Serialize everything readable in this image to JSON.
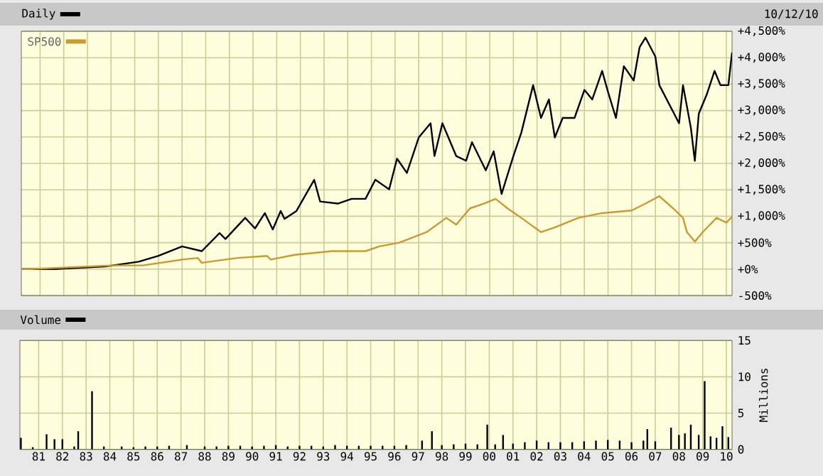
{
  "chart_data": [
    {
      "type": "line",
      "legend": "top left",
      "grid": true,
      "tick_labels": "y",
      "annotations": [
        "10/12/10"
      ],
      "xlim": [
        "1980-10-01",
        "2010-10-12"
      ],
      "xticks": [
        {
          "value": "1981-07",
          "label": null
        },
        {
          "value": "1982-07",
          "label": null
        },
        {
          "value": "1983-07",
          "label": null
        },
        {
          "value": "1984-07",
          "label": null
        },
        {
          "value": "1985-07",
          "label": null
        },
        {
          "value": "1986-07",
          "label": null
        },
        {
          "value": "1987-07",
          "label": null
        },
        {
          "value": "1988-07",
          "label": null
        },
        {
          "value": "1989-07",
          "label": null
        },
        {
          "value": "1990-07",
          "label": null
        },
        {
          "value": "1991-07",
          "label": null
        },
        {
          "value": "1992-07",
          "label": null
        },
        {
          "value": "1993-07",
          "label": null
        },
        {
          "value": "1994-07",
          "label": null
        },
        {
          "value": "1995-07",
          "label": null
        },
        {
          "value": "1996-07",
          "label": null
        },
        {
          "value": "1997-07",
          "label": null
        },
        {
          "value": "1998-07",
          "label": null
        },
        {
          "value": "1999-07",
          "label": null
        },
        {
          "value": "2000-07",
          "label": null
        },
        {
          "value": "2001-07",
          "label": null
        },
        {
          "value": "2002-07",
          "label": null
        },
        {
          "value": "2003-07",
          "label": null
        },
        {
          "value": "2004-07",
          "label": null
        },
        {
          "value": "2005-07",
          "label": null
        },
        {
          "value": "2006-07",
          "label": null
        },
        {
          "value": "2007-07",
          "label": null
        },
        {
          "value": "2008-07",
          "label": null
        },
        {
          "value": "2009-07",
          "label": null
        },
        {
          "value": "2010-07",
          "label": null
        }
      ],
      "ylim": [
        -500,
        4500
      ],
      "yticks": [
        {
          "value": 4500,
          "label": "+4,500%"
        },
        {
          "value": 4000,
          "label": "+4,000%"
        },
        {
          "value": 3500,
          "label": "+3,500%"
        },
        {
          "value": 3000,
          "label": "+3,000%"
        },
        {
          "value": 2500,
          "label": "+2,500%"
        },
        {
          "value": 2000,
          "label": "+2,000%"
        },
        {
          "value": 1500,
          "label": "+1,500%"
        },
        {
          "value": 1000,
          "label": "+1,000%"
        },
        {
          "value": 500,
          "label": "+500%"
        },
        {
          "value": 0,
          "label": "+0%"
        },
        {
          "value": -500,
          "label": "-500%"
        }
      ],
      "series": [
        {
          "name": "Daily",
          "color": "#000000",
          "x": [
            "1980-10",
            "1982-02",
            "1984-04",
            "1985-09",
            "1986-07",
            "1987-07",
            "1988-05",
            "1989-02",
            "1989-05",
            "1990-03",
            "1990-08",
            "1991-01",
            "1991-05",
            "1991-09",
            "1991-11",
            "1992-05",
            "1993-02",
            "1993-05",
            "1994-02",
            "1994-09",
            "1995-04",
            "1995-09",
            "1996-04",
            "1996-08",
            "1997-01",
            "1997-07",
            "1998-01",
            "1998-03",
            "1998-07",
            "1999-02",
            "1999-07",
            "1999-10",
            "2000-05",
            "2000-09",
            "2001-01",
            "2001-07",
            "2001-11",
            "2002-02",
            "2002-05",
            "2002-09",
            "2003-01",
            "2003-04",
            "2003-08",
            "2004-02",
            "2004-07",
            "2004-11",
            "2005-04",
            "2005-07",
            "2005-11",
            "2006-03",
            "2006-08",
            "2006-11",
            "2007-02",
            "2007-07",
            "2007-09",
            "2008-02",
            "2008-07",
            "2008-09",
            "2009-01",
            "2009-03",
            "2009-05",
            "2009-09",
            "2010-01",
            "2010-04",
            "2010-08",
            "2010-10-12"
          ],
          "values": [
            0,
            0,
            50,
            140,
            250,
            430,
            340,
            680,
            570,
            970,
            770,
            1060,
            750,
            1100,
            950,
            1100,
            1690,
            1280,
            1240,
            1330,
            1330,
            1690,
            1510,
            2090,
            1820,
            2490,
            2760,
            2140,
            2760,
            2140,
            2050,
            2400,
            1870,
            2230,
            1420,
            2140,
            2580,
            3030,
            3480,
            2860,
            3210,
            2490,
            2860,
            2860,
            3390,
            3210,
            3750,
            3350,
            2860,
            3840,
            3570,
            4200,
            4380,
            4020,
            3480,
            3120,
            2760,
            3480,
            2670,
            2050,
            2940,
            3300,
            3750,
            3480,
            3480,
            4100
          ]
        },
        {
          "name": "SP500",
          "color": "#cc9933",
          "x": [
            "1980-10",
            "1981-02",
            "1984-07",
            "1985-11",
            "1987-07",
            "1988-03",
            "1988-05",
            "1989-11",
            "1991-02",
            "1991-04",
            "1992-04",
            "1993-11",
            "1995-04",
            "1995-11",
            "1996-09",
            "1997-02",
            "1997-11",
            "1998-09",
            "1999-02",
            "1999-09",
            "2000-04",
            "2000-10",
            "2001-04",
            "2001-11",
            "2002-09",
            "2003-04",
            "2004-04",
            "2005-04",
            "2006-07",
            "2007-02",
            "2007-09",
            "2008-04",
            "2008-09",
            "2008-11",
            "2009-03",
            "2009-07",
            "2010-02",
            "2010-07",
            "2010-10-12"
          ],
          "values": [
            0,
            0,
            70,
            70,
            180,
            210,
            120,
            210,
            250,
            180,
            270,
            340,
            340,
            430,
            500,
            570,
            700,
            970,
            840,
            1150,
            1240,
            1330,
            1150,
            970,
            700,
            790,
            970,
            1060,
            1110,
            1240,
            1380,
            1150,
            970,
            700,
            520,
            700,
            970,
            880,
            990
          ]
        }
      ]
    },
    {
      "type": "bar",
      "legend": "top left",
      "grid": true,
      "ylabel": "Millions",
      "xlim": [
        "1980-10-01",
        "2010-10-12"
      ],
      "xticks": [
        {
          "value": "1981-07",
          "label": "81"
        },
        {
          "value": "1982-07",
          "label": "82"
        },
        {
          "value": "1983-07",
          "label": "83"
        },
        {
          "value": "1984-07",
          "label": "84"
        },
        {
          "value": "1985-07",
          "label": "85"
        },
        {
          "value": "1986-07",
          "label": "86"
        },
        {
          "value": "1987-07",
          "label": "87"
        },
        {
          "value": "1988-07",
          "label": "88"
        },
        {
          "value": "1989-07",
          "label": "89"
        },
        {
          "value": "1990-07",
          "label": "90"
        },
        {
          "value": "1991-07",
          "label": "91"
        },
        {
          "value": "1992-07",
          "label": "92"
        },
        {
          "value": "1993-07",
          "label": "93"
        },
        {
          "value": "1994-07",
          "label": "94"
        },
        {
          "value": "1995-07",
          "label": "95"
        },
        {
          "value": "1996-07",
          "label": "96"
        },
        {
          "value": "1997-07",
          "label": "97"
        },
        {
          "value": "1998-07",
          "label": "98"
        },
        {
          "value": "1999-07",
          "label": "99"
        },
        {
          "value": "2000-07",
          "label": "00"
        },
        {
          "value": "2001-07",
          "label": "01"
        },
        {
          "value": "2002-07",
          "label": "02"
        },
        {
          "value": "2003-07",
          "label": "03"
        },
        {
          "value": "2004-07",
          "label": "04"
        },
        {
          "value": "2005-07",
          "label": "05"
        },
        {
          "value": "2006-07",
          "label": "06"
        },
        {
          "value": "2007-07",
          "label": "07"
        },
        {
          "value": "2008-07",
          "label": "08"
        },
        {
          "value": "2009-07",
          "label": "09"
        },
        {
          "value": "2010-07",
          "label": "10"
        }
      ],
      "ylim": [
        0,
        15
      ],
      "yticks": [
        0,
        5,
        10,
        15
      ],
      "series": [
        {
          "name": "Volume",
          "color": "#000000",
          "x": [
            "1980-10",
            "1981-04",
            "1981-11",
            "1982-03",
            "1982-07",
            "1983-01",
            "1983-03",
            "1983-10",
            "1984-04",
            "1985-01",
            "1985-07",
            "1986-01",
            "1986-07",
            "1987-01",
            "1987-10",
            "1988-07",
            "1989-01",
            "1989-07",
            "1990-01",
            "1990-07",
            "1991-01",
            "1991-07",
            "1992-01",
            "1992-07",
            "1993-01",
            "1993-07",
            "1994-01",
            "1994-07",
            "1995-01",
            "1995-07",
            "1996-01",
            "1996-07",
            "1997-01",
            "1997-09",
            "1998-02",
            "1998-07",
            "1999-01",
            "1999-07",
            "2000-01",
            "2000-06",
            "2000-10",
            "2001-02",
            "2001-07",
            "2002-01",
            "2002-07",
            "2003-01",
            "2003-07",
            "2004-01",
            "2004-07",
            "2005-01",
            "2005-07",
            "2006-01",
            "2006-07",
            "2007-01",
            "2007-03",
            "2007-07",
            "2008-03",
            "2008-07",
            "2008-10",
            "2009-01",
            "2009-05",
            "2009-08",
            "2009-11",
            "2010-02",
            "2010-05",
            "2010-08"
          ],
          "values": [
            1.6,
            0.3,
            2.1,
            1.4,
            1.4,
            0.4,
            2.5,
            8.0,
            0.4,
            0.4,
            0.3,
            0.4,
            0.4,
            0.5,
            0.6,
            0.4,
            0.4,
            0.5,
            0.5,
            0.4,
            0.5,
            0.6,
            0.4,
            0.5,
            0.5,
            0.4,
            0.6,
            0.5,
            0.5,
            0.5,
            0.5,
            0.5,
            0.6,
            1.2,
            2.5,
            0.6,
            0.7,
            0.8,
            0.7,
            3.4,
            0.7,
            2.0,
            0.8,
            1.0,
            1.2,
            1.0,
            1.0,
            1.0,
            1.1,
            1.2,
            1.3,
            1.2,
            1.0,
            1.2,
            2.8,
            1.1,
            3.0,
            2.0,
            2.2,
            3.4,
            2.0,
            9.4,
            1.8,
            1.6,
            3.2,
            1.7
          ]
        }
      ]
    }
  ]
}
